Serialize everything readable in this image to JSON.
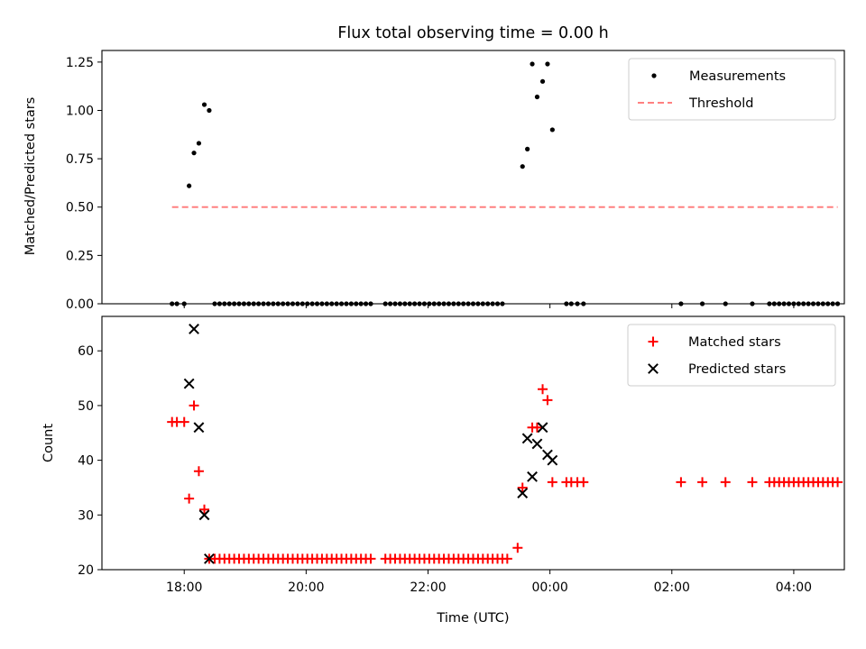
{
  "figure": {
    "title": "Flux total observing time = 0.00 h"
  },
  "chart_data": [
    {
      "type": "scatter",
      "ylabel": "Matched/Predicted stars",
      "xlabel": "",
      "xlim": [
        -1.35,
        10.83
      ],
      "ylim": [
        0,
        1.31
      ],
      "yticks": [
        0.0,
        0.25,
        0.5,
        0.75,
        1.0,
        1.25
      ],
      "ytick_labels": [
        "0.00",
        "0.25",
        "0.50",
        "0.75",
        "1.00",
        "1.25"
      ],
      "xticks": [
        0,
        2,
        4,
        6,
        8,
        10
      ],
      "show_xtick_labels": false,
      "grid": false,
      "legend": {
        "placement": "top-right",
        "entries": [
          "Measurements",
          "Threshold"
        ]
      },
      "series": [
        {
          "name": "Measurements",
          "style": "dot",
          "color": "#000000",
          "points": [
            [
              -0.2,
              0
            ],
            [
              -0.12,
              0
            ],
            [
              0.0,
              0
            ],
            [
              0.08,
              0.61
            ],
            [
              0.16,
              0.78
            ],
            [
              0.24,
              0.83
            ],
            [
              0.33,
              1.03
            ],
            [
              0.41,
              1.0
            ],
            [
              0.5,
              0
            ],
            [
              0.58,
              0
            ],
            [
              0.66,
              0
            ],
            [
              0.74,
              0
            ],
            [
              0.82,
              0
            ],
            [
              0.9,
              0
            ],
            [
              0.98,
              0
            ],
            [
              1.06,
              0
            ],
            [
              1.14,
              0
            ],
            [
              1.22,
              0
            ],
            [
              1.3,
              0
            ],
            [
              1.38,
              0
            ],
            [
              1.46,
              0
            ],
            [
              1.54,
              0
            ],
            [
              1.62,
              0
            ],
            [
              1.7,
              0
            ],
            [
              1.78,
              0
            ],
            [
              1.86,
              0
            ],
            [
              1.94,
              0
            ],
            [
              2.02,
              0
            ],
            [
              2.1,
              0
            ],
            [
              2.18,
              0
            ],
            [
              2.26,
              0
            ],
            [
              2.34,
              0
            ],
            [
              2.42,
              0
            ],
            [
              2.5,
              0
            ],
            [
              2.58,
              0
            ],
            [
              2.66,
              0
            ],
            [
              2.74,
              0
            ],
            [
              2.82,
              0
            ],
            [
              2.9,
              0
            ],
            [
              2.98,
              0
            ],
            [
              3.06,
              0
            ],
            [
              3.3,
              0
            ],
            [
              3.38,
              0
            ],
            [
              3.46,
              0
            ],
            [
              3.54,
              0
            ],
            [
              3.62,
              0
            ],
            [
              3.7,
              0
            ],
            [
              3.78,
              0
            ],
            [
              3.86,
              0
            ],
            [
              3.94,
              0
            ],
            [
              4.02,
              0
            ],
            [
              4.1,
              0
            ],
            [
              4.18,
              0
            ],
            [
              4.26,
              0
            ],
            [
              4.34,
              0
            ],
            [
              4.42,
              0
            ],
            [
              4.5,
              0
            ],
            [
              4.58,
              0
            ],
            [
              4.66,
              0
            ],
            [
              4.74,
              0
            ],
            [
              4.82,
              0
            ],
            [
              4.9,
              0
            ],
            [
              4.98,
              0
            ],
            [
              5.06,
              0
            ],
            [
              5.14,
              0
            ],
            [
              5.22,
              0
            ],
            [
              5.55,
              0.71
            ],
            [
              5.63,
              0.8
            ],
            [
              5.71,
              1.24
            ],
            [
              5.79,
              1.07
            ],
            [
              5.88,
              1.15
            ],
            [
              5.96,
              1.24
            ],
            [
              6.04,
              0.9
            ],
            [
              6.27,
              0
            ],
            [
              6.35,
              0
            ],
            [
              6.45,
              0
            ],
            [
              6.55,
              0
            ],
            [
              8.15,
              0
            ],
            [
              8.5,
              0
            ],
            [
              8.88,
              0
            ],
            [
              9.32,
              0
            ],
            [
              9.6,
              0
            ],
            [
              9.68,
              0
            ],
            [
              9.76,
              0
            ],
            [
              9.84,
              0
            ],
            [
              9.92,
              0
            ],
            [
              10.0,
              0
            ],
            [
              10.08,
              0
            ],
            [
              10.16,
              0
            ],
            [
              10.24,
              0
            ],
            [
              10.32,
              0
            ],
            [
              10.4,
              0
            ],
            [
              10.48,
              0
            ],
            [
              10.56,
              0
            ],
            [
              10.64,
              0
            ],
            [
              10.72,
              0
            ]
          ]
        },
        {
          "name": "Threshold",
          "style": "dashed-line",
          "color": "#ff8080",
          "x": [
            -0.2,
            10.72
          ],
          "y": [
            0.5,
            0.5
          ]
        }
      ]
    },
    {
      "type": "scatter",
      "ylabel": "Count",
      "xlabel": "Time (UTC)",
      "xlim": [
        -1.35,
        10.83
      ],
      "ylim": [
        20.0,
        66.3
      ],
      "yticks": [
        20,
        30,
        40,
        50,
        60
      ],
      "ytick_labels": [
        "20",
        "30",
        "40",
        "50",
        "60"
      ],
      "xticks": [
        0,
        2,
        4,
        6,
        8,
        10
      ],
      "xtick_labels": [
        "18:00",
        "20:00",
        "22:00",
        "00:00",
        "02:00",
        "04:00"
      ],
      "grid": false,
      "legend": {
        "placement": "top-right",
        "entries": [
          "Matched stars",
          "Predicted stars"
        ]
      },
      "series": [
        {
          "name": "Matched stars",
          "style": "plus",
          "color": "#ff0000",
          "points": [
            [
              -0.2,
              47
            ],
            [
              -0.12,
              47
            ],
            [
              0.0,
              47
            ],
            [
              0.08,
              33
            ],
            [
              0.16,
              50
            ],
            [
              0.24,
              38
            ],
            [
              0.33,
              31
            ],
            [
              0.41,
              22
            ],
            [
              0.5,
              22
            ],
            [
              0.58,
              22
            ],
            [
              0.66,
              22
            ],
            [
              0.74,
              22
            ],
            [
              0.82,
              22
            ],
            [
              0.9,
              22
            ],
            [
              0.98,
              22
            ],
            [
              1.06,
              22
            ],
            [
              1.14,
              22
            ],
            [
              1.22,
              22
            ],
            [
              1.3,
              22
            ],
            [
              1.38,
              22
            ],
            [
              1.46,
              22
            ],
            [
              1.54,
              22
            ],
            [
              1.62,
              22
            ],
            [
              1.7,
              22
            ],
            [
              1.78,
              22
            ],
            [
              1.86,
              22
            ],
            [
              1.94,
              22
            ],
            [
              2.02,
              22
            ],
            [
              2.1,
              22
            ],
            [
              2.18,
              22
            ],
            [
              2.26,
              22
            ],
            [
              2.34,
              22
            ],
            [
              2.42,
              22
            ],
            [
              2.5,
              22
            ],
            [
              2.58,
              22
            ],
            [
              2.66,
              22
            ],
            [
              2.74,
              22
            ],
            [
              2.82,
              22
            ],
            [
              2.9,
              22
            ],
            [
              2.98,
              22
            ],
            [
              3.06,
              22
            ],
            [
              3.3,
              22
            ],
            [
              3.38,
              22
            ],
            [
              3.46,
              22
            ],
            [
              3.54,
              22
            ],
            [
              3.62,
              22
            ],
            [
              3.7,
              22
            ],
            [
              3.78,
              22
            ],
            [
              3.86,
              22
            ],
            [
              3.94,
              22
            ],
            [
              4.02,
              22
            ],
            [
              4.1,
              22
            ],
            [
              4.18,
              22
            ],
            [
              4.26,
              22
            ],
            [
              4.34,
              22
            ],
            [
              4.42,
              22
            ],
            [
              4.5,
              22
            ],
            [
              4.58,
              22
            ],
            [
              4.66,
              22
            ],
            [
              4.74,
              22
            ],
            [
              4.82,
              22
            ],
            [
              4.9,
              22
            ],
            [
              4.98,
              22
            ],
            [
              5.06,
              22
            ],
            [
              5.14,
              22
            ],
            [
              5.22,
              22
            ],
            [
              5.3,
              22
            ],
            [
              5.47,
              24
            ],
            [
              5.55,
              35
            ],
            [
              5.71,
              46
            ],
            [
              5.79,
              46
            ],
            [
              5.88,
              53
            ],
            [
              5.96,
              51
            ],
            [
              6.04,
              36
            ],
            [
              6.27,
              36
            ],
            [
              6.35,
              36
            ],
            [
              6.45,
              36
            ],
            [
              6.55,
              36
            ],
            [
              8.15,
              36
            ],
            [
              8.5,
              36
            ],
            [
              8.88,
              36
            ],
            [
              9.32,
              36
            ],
            [
              9.6,
              36
            ],
            [
              9.68,
              36
            ],
            [
              9.76,
              36
            ],
            [
              9.84,
              36
            ],
            [
              9.92,
              36
            ],
            [
              10.0,
              36
            ],
            [
              10.08,
              36
            ],
            [
              10.16,
              36
            ],
            [
              10.24,
              36
            ],
            [
              10.32,
              36
            ],
            [
              10.4,
              36
            ],
            [
              10.48,
              36
            ],
            [
              10.56,
              36
            ],
            [
              10.64,
              36
            ],
            [
              10.72,
              36
            ]
          ]
        },
        {
          "name": "Predicted stars",
          "style": "x",
          "color": "#000000",
          "points": [
            [
              0.08,
              54
            ],
            [
              0.16,
              64
            ],
            [
              0.24,
              46
            ],
            [
              0.33,
              30
            ],
            [
              0.41,
              22
            ],
            [
              5.55,
              34
            ],
            [
              5.63,
              44
            ],
            [
              5.71,
              37
            ],
            [
              5.79,
              43
            ],
            [
              5.88,
              46
            ],
            [
              5.96,
              41
            ],
            [
              6.04,
              40
            ]
          ]
        }
      ]
    }
  ]
}
